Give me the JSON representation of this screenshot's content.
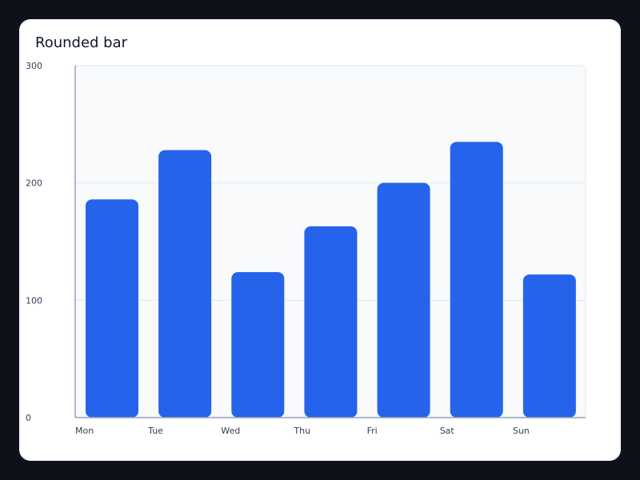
{
  "chart_data": {
    "type": "bar",
    "title": "Rounded bar",
    "categories": [
      "Mon",
      "Tue",
      "Wed",
      "Thu",
      "Fri",
      "Sat",
      "Sun"
    ],
    "values": [
      186,
      228,
      124,
      163,
      200,
      235,
      122
    ],
    "ylim": [
      0,
      300
    ],
    "yticks": [
      0,
      100,
      200,
      300
    ],
    "xlabel": "",
    "ylabel": "",
    "grid": true,
    "colors": {
      "bar": "#2563eb",
      "plot_background": "#f8fafc",
      "grid": "#e2e8f0",
      "axis": "#94a3b8"
    }
  }
}
